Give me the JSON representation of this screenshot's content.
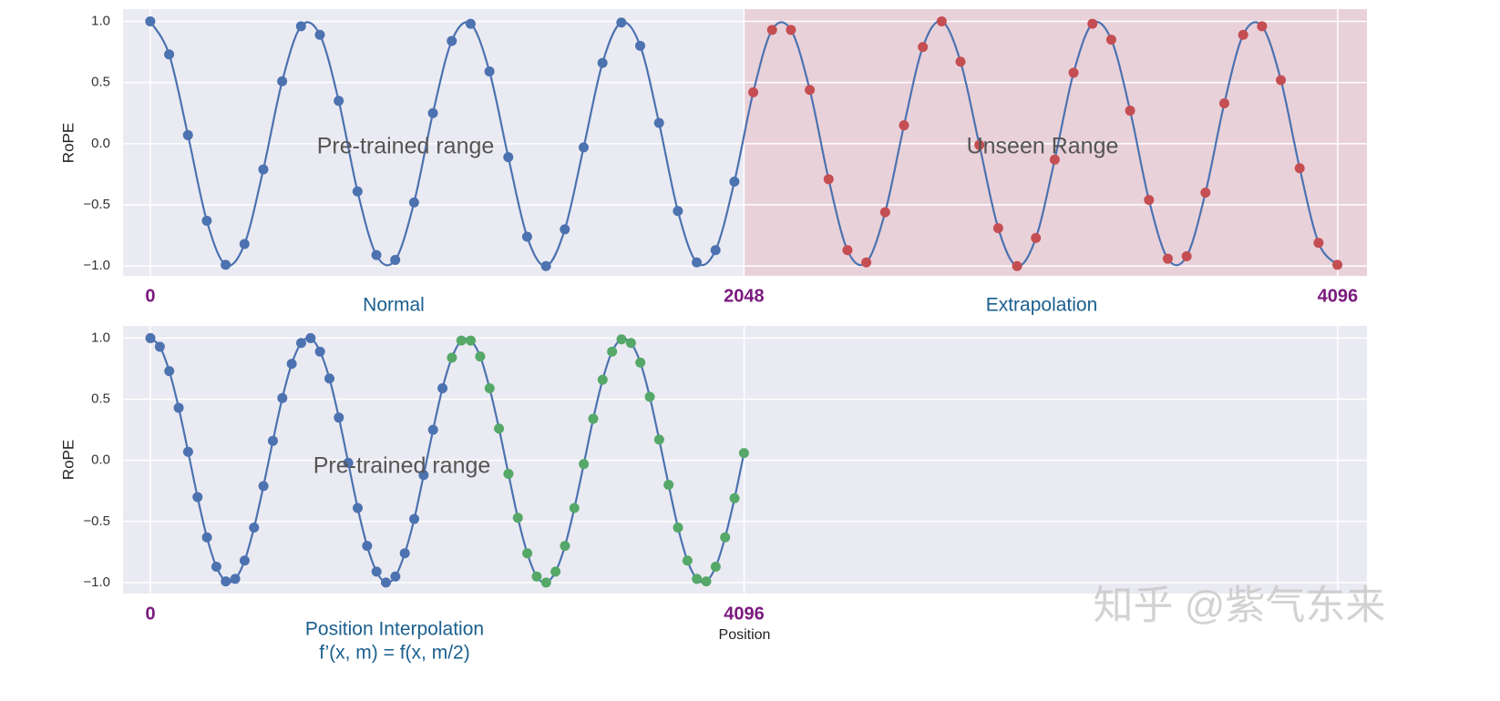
{
  "watermark": "知乎 @紫气东来",
  "chart_data": [
    {
      "type": "line",
      "y_label": "RoPE",
      "line_color": "#4c72b0",
      "xlim": [
        -94,
        4197
      ],
      "ylim": [
        -1.08,
        1.1
      ],
      "xticks": [
        0,
        2048,
        4096
      ],
      "yticks": [
        {
          "value": -1.0,
          "label": "−1.0"
        },
        {
          "value": -0.5,
          "label": "−0.5"
        },
        {
          "value": 0.0,
          "label": "0.0"
        },
        {
          "value": 0.5,
          "label": "0.5"
        },
        {
          "value": 1.0,
          "label": "1.0"
        }
      ],
      "grid": true,
      "shade": {
        "from": 2048,
        "color": "#e9d1d9"
      },
      "annotations": [
        "Pre-trained range",
        "Unseen Range"
      ],
      "captions": [
        "Normal",
        "Extrapolation"
      ],
      "series": [
        {
          "color": "#4c72b0",
          "x": [
            0,
            65,
            130,
            195,
            260,
            325,
            390,
            455,
            520,
            585,
            650,
            715,
            780,
            845,
            910,
            975,
            1040,
            1105,
            1170,
            1235,
            1300,
            1365,
            1430,
            1495,
            1560,
            1625,
            1690,
            1755,
            1820,
            1885,
            1950,
            2015
          ],
          "values": [
            1.0,
            0.73,
            0.07,
            -0.63,
            -0.99,
            -0.82,
            -0.21,
            0.51,
            0.96,
            0.89,
            0.35,
            -0.39,
            -0.91,
            -0.95,
            -0.48,
            0.25,
            0.84,
            0.98,
            0.59,
            -0.11,
            -0.76,
            -1.0,
            -0.7,
            -0.03,
            0.66,
            0.99,
            0.8,
            0.17,
            -0.55,
            -0.97,
            -0.87,
            -0.31
          ]
        },
        {
          "color": "#c44e52",
          "x": [
            2080,
            2145,
            2210,
            2275,
            2340,
            2405,
            2470,
            2535,
            2600,
            2665,
            2730,
            2795,
            2860,
            2925,
            2990,
            3055,
            3120,
            3185,
            3250,
            3315,
            3380,
            3445,
            3510,
            3575,
            3640,
            3705,
            3770,
            3835,
            3900,
            3965,
            4030,
            4095
          ],
          "values": [
            0.42,
            0.93,
            0.93,
            0.44,
            -0.29,
            -0.87,
            -0.97,
            -0.56,
            0.15,
            0.79,
            1.0,
            0.67,
            -0.01,
            -0.69,
            -1.0,
            -0.77,
            -0.13,
            0.58,
            0.98,
            0.85,
            0.27,
            -0.46,
            -0.94,
            -0.92,
            -0.4,
            0.33,
            0.89,
            0.96,
            0.52,
            -0.2,
            -0.81,
            -0.99
          ]
        }
      ]
    },
    {
      "type": "line",
      "y_label": "RoPE",
      "x_label": "Position",
      "line_color": "#4c72b0",
      "xlim": [
        -189,
        8393
      ],
      "ylim": [
        -1.09,
        1.1
      ],
      "xticks": [
        0,
        4096
      ],
      "xgrid": [
        0,
        4096,
        8192
      ],
      "yticks": [
        {
          "value": -1.0,
          "label": "−1.0"
        },
        {
          "value": -0.5,
          "label": "−0.5"
        },
        {
          "value": 0.0,
          "label": "0.0"
        },
        {
          "value": 0.5,
          "label": "0.5"
        },
        {
          "value": 1.0,
          "label": "1.0"
        }
      ],
      "grid": true,
      "annotations": [
        "Pre-trained range"
      ],
      "captions": [
        "Position Interpolation",
        "f’(x, m) = f(x, m/2)"
      ],
      "series": [
        {
          "color": "#4c72b0",
          "x": [
            0,
            65,
            130,
            195,
            260,
            325,
            390,
            455,
            520,
            585,
            650,
            715,
            780,
            845,
            910,
            975,
            1040,
            1105,
            1170,
            1235,
            1300,
            1365,
            1430,
            1495,
            1560,
            1625,
            1690,
            1755,
            1820,
            1885,
            1950,
            2015
          ],
          "values": [
            1.0,
            0.93,
            0.73,
            0.43,
            0.07,
            -0.3,
            -0.63,
            -0.87,
            -0.99,
            -0.97,
            -0.82,
            -0.55,
            -0.21,
            0.16,
            0.51,
            0.79,
            0.96,
            1.0,
            0.89,
            0.67,
            0.35,
            -0.02,
            -0.39,
            -0.7,
            -0.91,
            -1.0,
            -0.95,
            -0.76,
            -0.48,
            -0.12,
            0.25,
            0.59
          ]
        },
        {
          "color": "#55a868",
          "x": [
            2080,
            2145,
            2210,
            2275,
            2340,
            2405,
            2470,
            2535,
            2600,
            2665,
            2730,
            2795,
            2860,
            2925,
            2990,
            3055,
            3120,
            3185,
            3250,
            3315,
            3380,
            3445,
            3510,
            3575,
            3640,
            3705,
            3770,
            3835,
            3900,
            3965,
            4030,
            4095
          ],
          "values": [
            0.84,
            0.98,
            0.98,
            0.85,
            0.59,
            0.26,
            -0.11,
            -0.47,
            -0.76,
            -0.95,
            -1.0,
            -0.91,
            -0.7,
            -0.39,
            -0.03,
            0.34,
            0.66,
            0.89,
            0.99,
            0.96,
            0.8,
            0.52,
            0.17,
            -0.2,
            -0.55,
            -0.82,
            -0.97,
            -0.99,
            -0.87,
            -0.63,
            -0.31,
            0.06
          ]
        }
      ]
    }
  ]
}
